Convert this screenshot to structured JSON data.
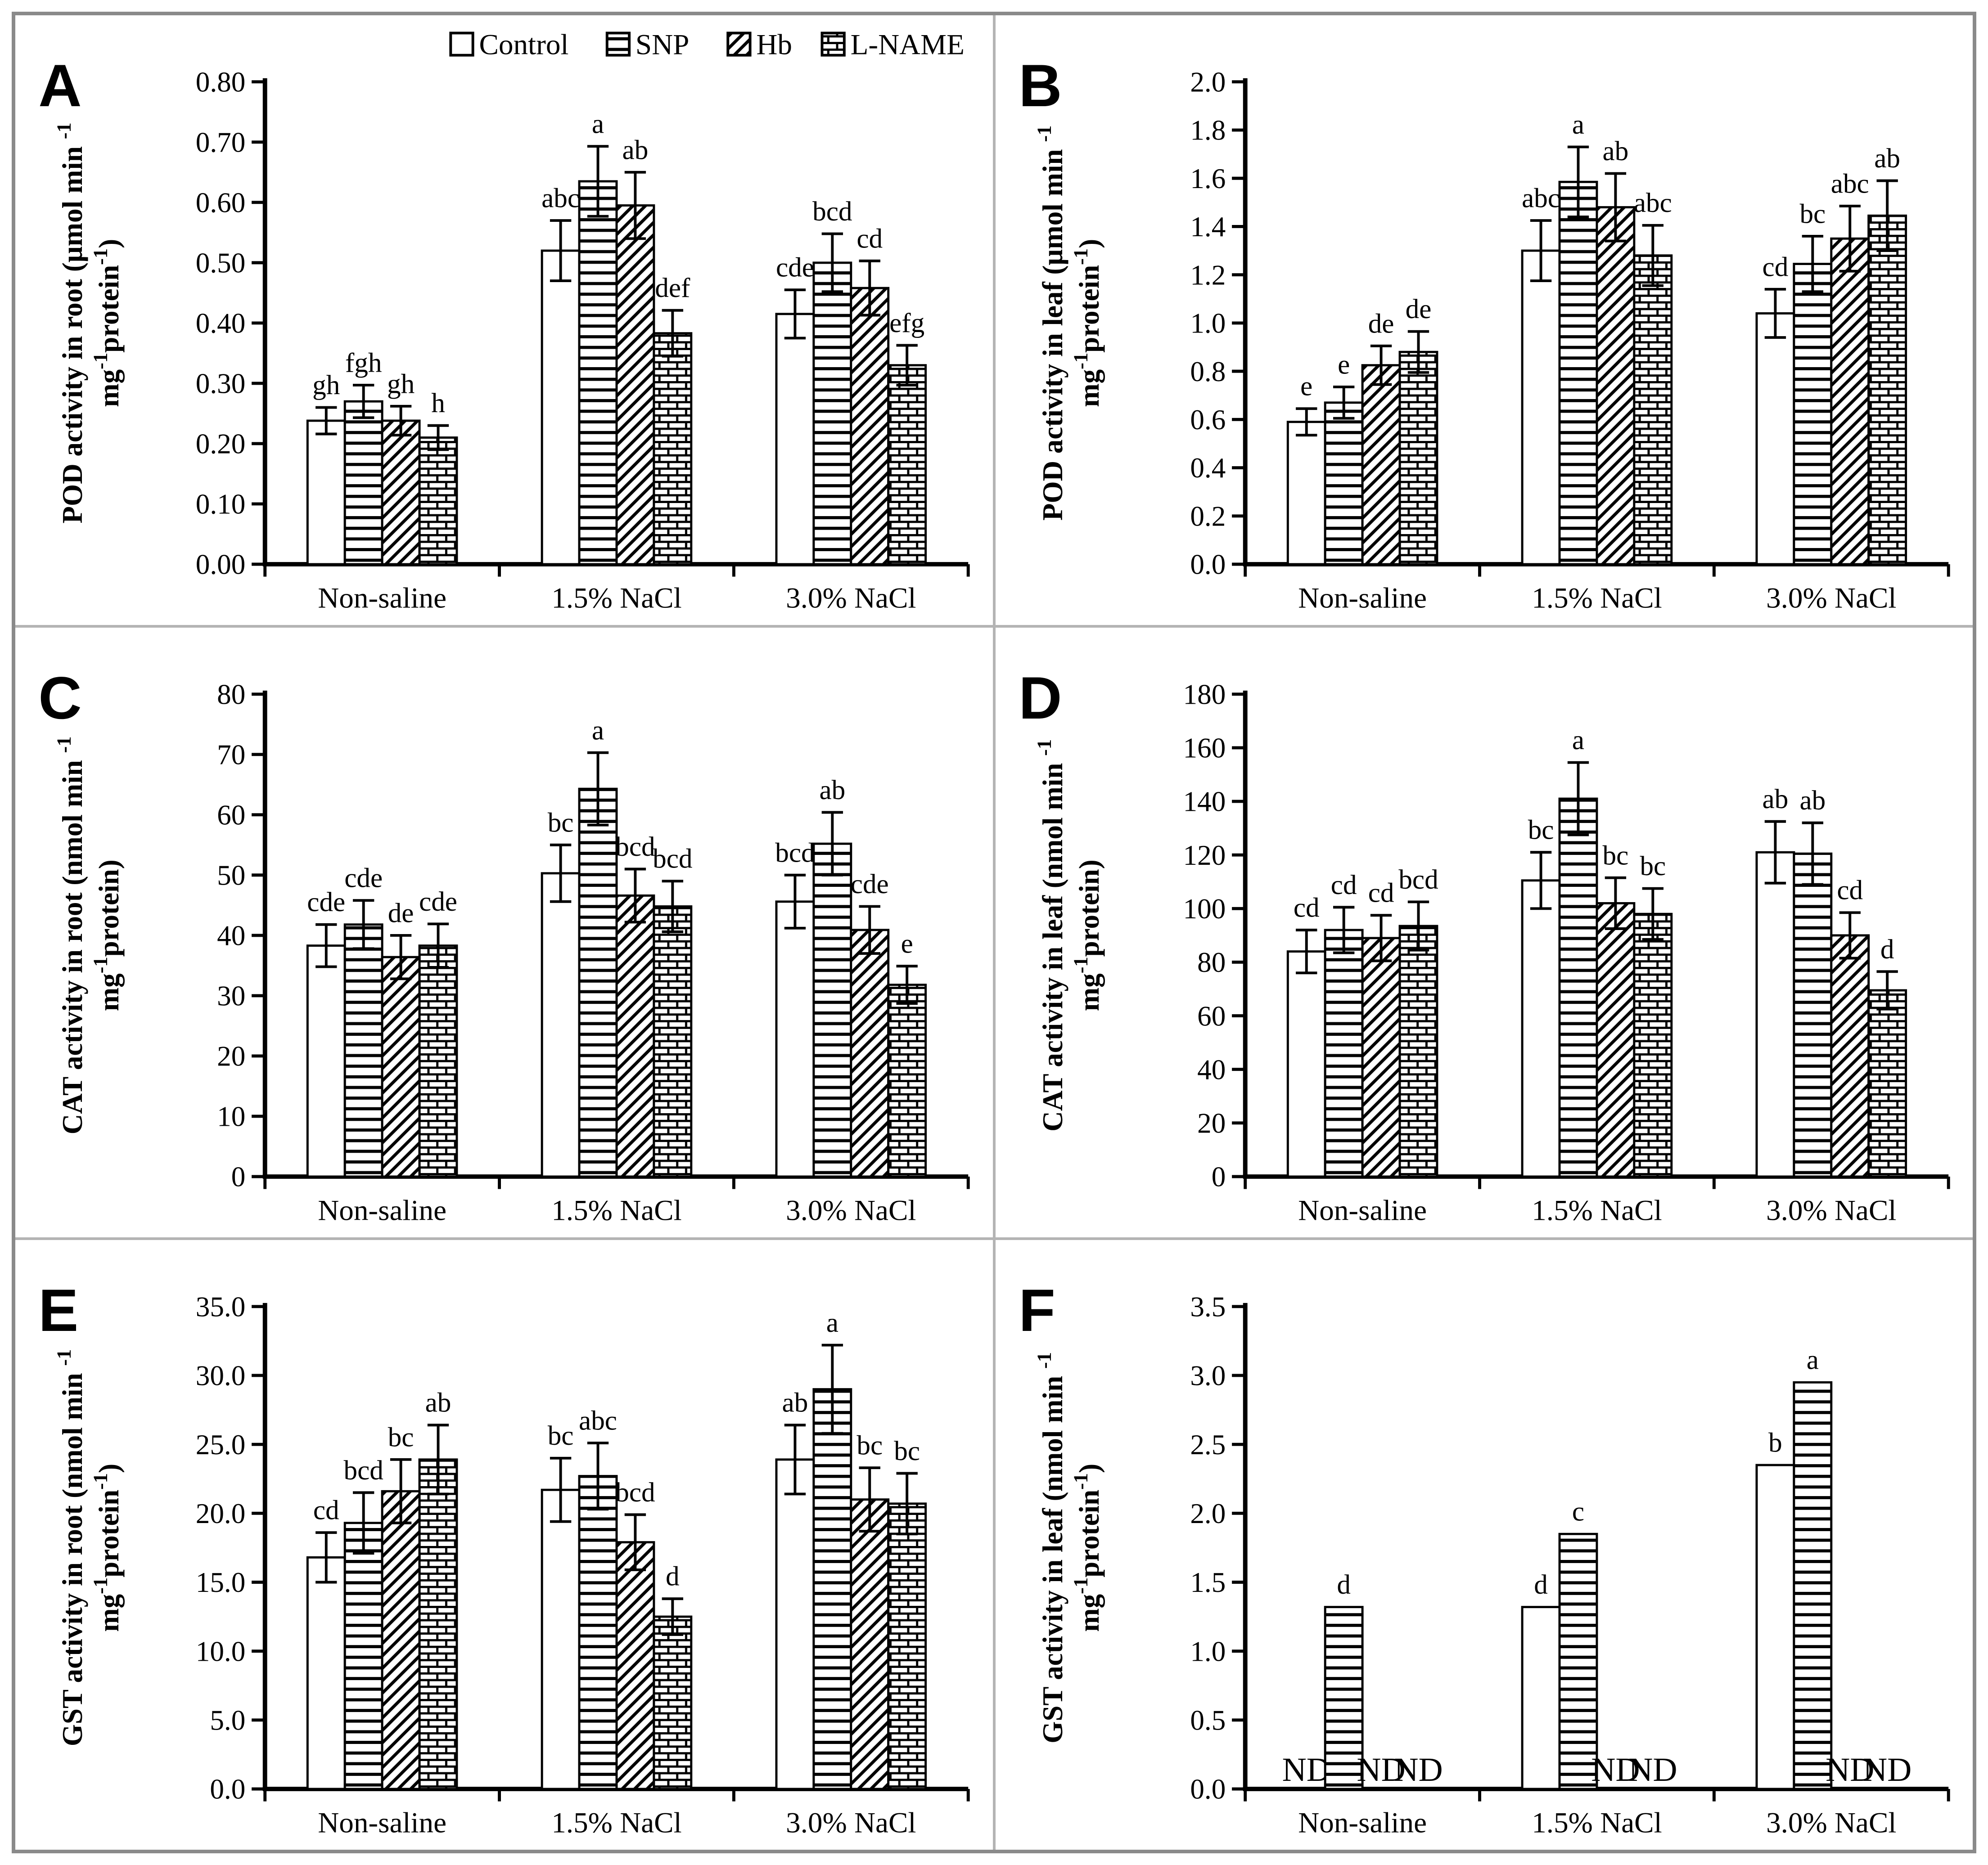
{
  "figure": {
    "legend": {
      "position": "top-right-of-panel-A",
      "items": [
        {
          "label": "Control",
          "pattern": "plain"
        },
        {
          "label": "SNP",
          "pattern": "hlines"
        },
        {
          "label": "Hb",
          "pattern": "diag"
        },
        {
          "label": "L-NAME",
          "pattern": "brick"
        }
      ]
    },
    "categories": [
      "Non-saline",
      "1.5% NaCl",
      "3.0% NaCl"
    ],
    "nd_text": "ND",
    "ink_color": "#000000",
    "frame_color": "#8a8a8a"
  },
  "chart_data": [
    {
      "type": "bar",
      "letter": "A",
      "ylabel": "POD activity in root (μmol min ^{-1}|mg^{-1}protein^{-1})",
      "ylim": [
        0,
        0.8
      ],
      "ystep": 0.1,
      "decimals": 2,
      "grid": false,
      "show_legend": true,
      "categories": [
        "Non-saline",
        "1.5% NaCl",
        "3.0% NaCl"
      ],
      "series": [
        {
          "name": "Control",
          "pattern": "plain",
          "values": [
            0.238,
            0.52,
            0.415
          ],
          "errors": [
            0.022,
            0.05,
            0.04
          ],
          "letters": [
            "gh",
            "abc",
            "cde"
          ]
        },
        {
          "name": "SNP",
          "pattern": "hlines",
          "values": [
            0.27,
            0.635,
            0.5
          ],
          "errors": [
            0.027,
            0.058,
            0.048
          ],
          "letters": [
            "fgh",
            "a",
            "bcd"
          ]
        },
        {
          "name": "Hb",
          "pattern": "diag",
          "values": [
            0.238,
            0.595,
            0.458
          ],
          "errors": [
            0.024,
            0.055,
            0.045
          ],
          "letters": [
            "gh",
            "ab",
            "cd"
          ]
        },
        {
          "name": "L-NAME",
          "pattern": "brick",
          "values": [
            0.21,
            0.383,
            0.33
          ],
          "errors": [
            0.02,
            0.038,
            0.033
          ],
          "letters": [
            "h",
            "def",
            "efg"
          ]
        }
      ]
    },
    {
      "type": "bar",
      "letter": "B",
      "ylabel": "POD activity in leaf (μmol min ^{-1}|mg^{-1}protein^{-1})",
      "ylim": [
        0,
        2.0
      ],
      "ystep": 0.2,
      "decimals": 1,
      "grid": false,
      "show_legend": false,
      "categories": [
        "Non-saline",
        "1.5% NaCl",
        "3.0% NaCl"
      ],
      "series": [
        {
          "name": "Control",
          "pattern": "plain",
          "values": [
            0.59,
            1.3,
            1.04
          ],
          "errors": [
            0.055,
            0.125,
            0.1
          ],
          "letters": [
            "e",
            "abc",
            "cd"
          ]
        },
        {
          "name": "SNP",
          "pattern": "hlines",
          "values": [
            0.67,
            1.585,
            1.245
          ],
          "errors": [
            0.065,
            0.145,
            0.115
          ],
          "letters": [
            "e",
            "a",
            "bc"
          ]
        },
        {
          "name": "Hb",
          "pattern": "diag",
          "values": [
            0.825,
            1.48,
            1.35
          ],
          "errors": [
            0.08,
            0.14,
            0.135
          ],
          "letters": [
            "de",
            "ab",
            "abc"
          ]
        },
        {
          "name": "L-NAME",
          "pattern": "brick",
          "values": [
            0.88,
            1.28,
            1.445
          ],
          "errors": [
            0.085,
            0.125,
            0.145
          ],
          "letters": [
            "de",
            "abc",
            "ab"
          ]
        }
      ]
    },
    {
      "type": "bar",
      "letter": "C",
      "ylabel": "CAT activity in root (nmol min ^{-1}|mg^{-1}protein)",
      "ylim": [
        0,
        80
      ],
      "ystep": 10,
      "decimals": 0,
      "grid": false,
      "show_legend": false,
      "categories": [
        "Non-saline",
        "1.5% NaCl",
        "3.0% NaCl"
      ],
      "series": [
        {
          "name": "Control",
          "pattern": "plain",
          "values": [
            38.3,
            50.3,
            45.6
          ],
          "errors": [
            3.5,
            4.7,
            4.4
          ],
          "letters": [
            "cde",
            "bc",
            "bcd"
          ]
        },
        {
          "name": "SNP",
          "pattern": "hlines",
          "values": [
            41.8,
            64.3,
            55.2
          ],
          "errors": [
            4.0,
            6.0,
            5.2
          ],
          "letters": [
            "cde",
            "a",
            "ab"
          ]
        },
        {
          "name": "Hb",
          "pattern": "diag",
          "values": [
            36.4,
            46.6,
            40.9
          ],
          "errors": [
            3.6,
            4.4,
            3.9
          ],
          "letters": [
            "de",
            "bcd",
            "cde"
          ]
        },
        {
          "name": "L-NAME",
          "pattern": "brick",
          "values": [
            38.3,
            44.8,
            31.8
          ],
          "errors": [
            3.6,
            4.2,
            3.1
          ],
          "letters": [
            "cde",
            "bcd",
            "e"
          ]
        }
      ]
    },
    {
      "type": "bar",
      "letter": "D",
      "ylabel": "CAT activity in leaf (nmol min ^{-1}|mg^{-1}protein)",
      "ylim": [
        0,
        180
      ],
      "ystep": 20,
      "decimals": 0,
      "grid": false,
      "show_legend": false,
      "categories": [
        "Non-saline",
        "1.5% NaCl",
        "3.0% NaCl"
      ],
      "series": [
        {
          "name": "Control",
          "pattern": "plain",
          "values": [
            84.0,
            110.5,
            121.0
          ],
          "errors": [
            8.0,
            10.5,
            11.5
          ],
          "letters": [
            "cd",
            "bc",
            "ab"
          ]
        },
        {
          "name": "SNP",
          "pattern": "hlines",
          "values": [
            92.0,
            141.0,
            120.5
          ],
          "errors": [
            8.5,
            13.5,
            11.5
          ],
          "letters": [
            "cd",
            "a",
            "ab"
          ]
        },
        {
          "name": "Hb",
          "pattern": "diag",
          "values": [
            89.0,
            102.0,
            90.0
          ],
          "errors": [
            8.5,
            9.5,
            8.5
          ],
          "letters": [
            "cd",
            "bc",
            "cd"
          ]
        },
        {
          "name": "L-NAME",
          "pattern": "brick",
          "values": [
            93.5,
            98.0,
            69.5
          ],
          "errors": [
            9.0,
            9.5,
            7.0
          ],
          "letters": [
            "bcd",
            "bc",
            "d"
          ]
        }
      ]
    },
    {
      "type": "bar",
      "letter": "E",
      "ylabel": "GST activity in root (nmol min ^{-1}|mg^{-1}protein^{-1})",
      "ylim": [
        0,
        35
      ],
      "ystep": 5,
      "decimals": 1,
      "grid": false,
      "show_legend": false,
      "categories": [
        "Non-saline",
        "1.5% NaCl",
        "3.0% NaCl"
      ],
      "series": [
        {
          "name": "Control",
          "pattern": "plain",
          "values": [
            16.8,
            21.7,
            23.9
          ],
          "errors": [
            1.8,
            2.3,
            2.5
          ],
          "letters": [
            "cd",
            "bc",
            "ab"
          ]
        },
        {
          "name": "SNP",
          "pattern": "hlines",
          "values": [
            19.3,
            22.7,
            29.0
          ],
          "errors": [
            2.2,
            2.4,
            3.2
          ],
          "letters": [
            "bcd",
            "abc",
            "a"
          ]
        },
        {
          "name": "Hb",
          "pattern": "diag",
          "values": [
            21.6,
            17.9,
            21.0
          ],
          "errors": [
            2.3,
            2.0,
            2.3
          ],
          "letters": [
            "bc",
            "bcd",
            "bc"
          ]
        },
        {
          "name": "L-NAME",
          "pattern": "brick",
          "values": [
            23.9,
            12.5,
            20.7
          ],
          "errors": [
            2.5,
            1.3,
            2.2
          ],
          "letters": [
            "ab",
            "d",
            "bc"
          ]
        }
      ]
    },
    {
      "type": "bar",
      "letter": "F",
      "ylabel": "GST activity in leaf (nmol min ^{-1}|mg^{-1}protein^{-1})",
      "ylim": [
        0,
        3.5
      ],
      "ystep": 0.5,
      "decimals": 1,
      "grid": false,
      "show_legend": false,
      "categories": [
        "Non-saline",
        "1.5% NaCl",
        "3.0% NaCl"
      ],
      "series": [
        {
          "name": "Control",
          "pattern": "plain",
          "values": [
            null,
            1.32,
            2.35
          ],
          "errors": null,
          "letters": [
            null,
            "d",
            "b"
          ]
        },
        {
          "name": "SNP",
          "pattern": "hlines",
          "values": [
            1.32,
            1.85,
            2.95
          ],
          "errors": null,
          "letters": [
            "d",
            "c",
            "a"
          ]
        },
        {
          "name": "Hb",
          "pattern": "diag",
          "values": [
            null,
            null,
            null
          ],
          "errors": null,
          "letters": [
            null,
            null,
            null
          ]
        },
        {
          "name": "L-NAME",
          "pattern": "brick",
          "values": [
            null,
            null,
            null
          ],
          "errors": null,
          "letters": [
            null,
            null,
            null
          ]
        }
      ]
    }
  ]
}
